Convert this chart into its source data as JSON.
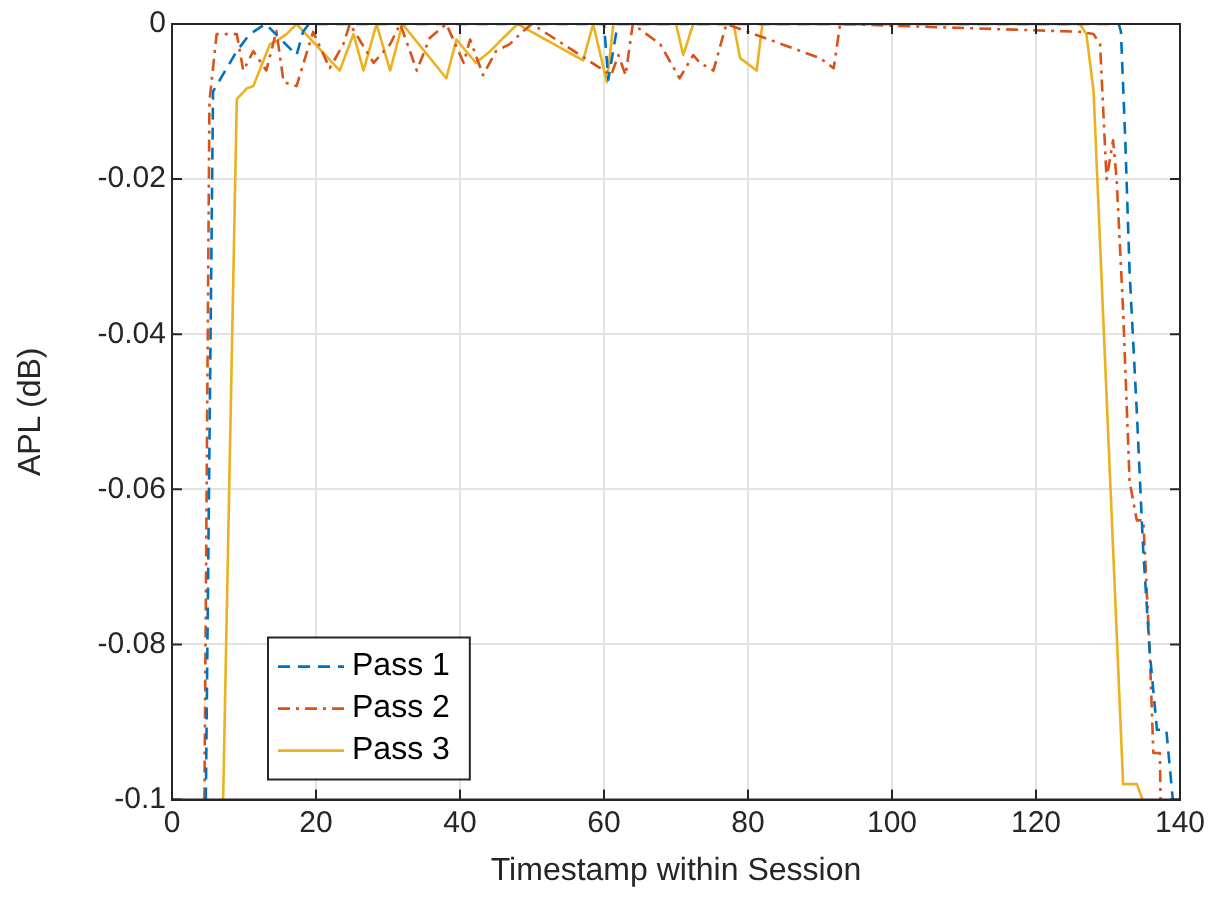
{
  "chart_data": {
    "type": "line",
    "xlabel": "Timestamp within Session",
    "ylabel": "APL (dB)",
    "xlim": [
      0,
      140
    ],
    "xticks": [
      0,
      20,
      40,
      60,
      80,
      100,
      120,
      140
    ],
    "ylim": [
      -0.1,
      0
    ],
    "yticks": [
      -0.1,
      -0.08,
      -0.06,
      -0.04,
      -0.02,
      0
    ],
    "grid": true,
    "legend": "bottom left",
    "marker": "none",
    "series": [
      {
        "name": "Pass 1",
        "color": "#0072bd",
        "line_style": "dashed",
        "x": [
          4.7,
          5.7,
          9,
          10.8,
          13,
          17.3,
          18.2,
          19,
          60,
          60.6,
          61.9,
          131.5,
          131.8,
          132.4,
          133,
          134,
          134.9,
          135.8,
          136.8,
          138.1,
          139
        ],
        "values": [
          -0.1,
          -0.0087,
          -0.0035,
          -0.0013,
          0,
          -0.004,
          -0.001,
          0,
          0,
          -0.0072,
          0,
          0,
          -0.001,
          -0.015,
          -0.032,
          -0.05,
          -0.068,
          -0.081,
          -0.091,
          -0.091,
          -0.1
        ]
      },
      {
        "name": "Pass 2",
        "color": "#d95319",
        "line_style": "dashdot",
        "x": [
          4.5,
          5.2,
          6.2,
          9,
          9.9,
          11.3,
          13.1,
          14.5,
          15.5,
          17.3,
          19.6,
          21.9,
          23.8,
          24.7,
          28,
          30.3,
          31.7,
          34,
          35.8,
          38.1,
          40.5,
          41.4,
          43.2,
          45,
          46.9,
          48.8,
          50,
          61,
          62,
          63,
          64,
          67.8,
          70.5,
          72.4,
          73.3,
          75.2,
          77,
          90,
          91.9,
          92.8,
          126.1,
          128,
          128.9,
          129.8,
          130.7,
          131.2,
          132.1,
          133,
          134,
          134.9,
          135.8,
          136.3,
          137.2,
          137.3
        ],
        "values": [
          -0.1,
          -0.01,
          -0.0013,
          -0.0013,
          -0.006,
          -0.0035,
          -0.006,
          -0.0009,
          -0.0075,
          -0.008,
          -0.001,
          -0.0057,
          -0.0026,
          0,
          -0.005,
          -0.0026,
          0,
          -0.006,
          -0.0018,
          0,
          -0.005,
          -0.002,
          -0.0066,
          -0.0035,
          -0.0026,
          -0.0009,
          0,
          -0.0066,
          -0.004,
          -0.0066,
          0,
          -0.0026,
          -0.007,
          -0.004,
          -0.005,
          -0.006,
          0,
          -0.0044,
          -0.0057,
          0,
          -0.001,
          -0.0013,
          -0.0026,
          -0.02,
          -0.015,
          -0.02,
          -0.037,
          -0.059,
          -0.064,
          -0.064,
          -0.081,
          -0.094,
          -0.094,
          -0.1
        ]
      },
      {
        "name": "Pass 3",
        "color": "#edb120",
        "line_style": "solid",
        "x": [
          7.1,
          9,
          10.4,
          11.3,
          13.6,
          14.5,
          15.9,
          17.3,
          23.3,
          25.2,
          26.6,
          28.4,
          30.3,
          32,
          38.1,
          39.5,
          42.2,
          44.2,
          46,
          48,
          57.1,
          58.5,
          60.4,
          61.3,
          70,
          71,
          72.4,
          78,
          78.9,
          81.2,
          82,
          126.1,
          127,
          128,
          132.1,
          134,
          134.8
        ],
        "values": [
          -0.1,
          -0.0097,
          -0.0083,
          -0.008,
          -0.0026,
          -0.0022,
          -0.0013,
          0,
          -0.006,
          -0.0013,
          -0.006,
          0,
          -0.006,
          0,
          -0.007,
          -0.002,
          -0.005,
          -0.0035,
          -0.0018,
          0,
          -0.0047,
          0,
          -0.0075,
          0,
          0,
          -0.004,
          0,
          0,
          -0.0044,
          -0.006,
          0,
          0,
          -0.0013,
          -0.0087,
          -0.098,
          -0.098,
          -0.1
        ]
      }
    ]
  }
}
